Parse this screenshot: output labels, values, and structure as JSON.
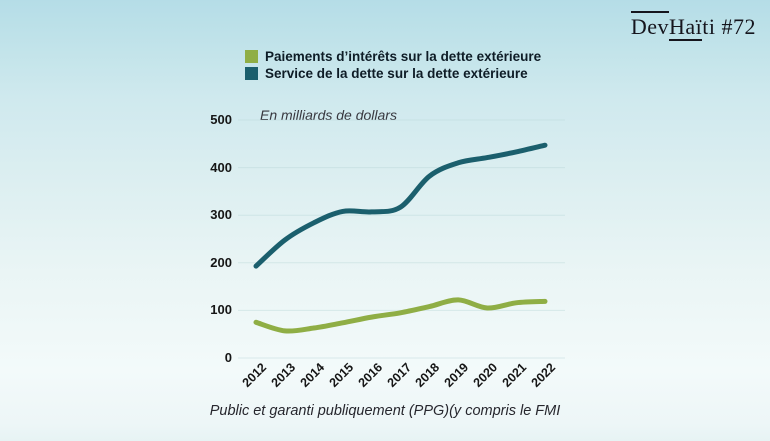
{
  "logo": {
    "part_overlined": "Dev",
    "part_underlined": "Haï",
    "part_rest": "ti",
    "issue": " #72"
  },
  "chart_data": {
    "type": "line",
    "subtitle": "En milliards de dollars",
    "caption": "Public et garanti publiquement (PPG)(y compris le FMI",
    "x": [
      2012,
      2013,
      2014,
      2015,
      2016,
      2017,
      2018,
      2019,
      2020,
      2021,
      2022
    ],
    "series": [
      {
        "name": "Paiements d’intérêts sur la dette extérieure",
        "color": "#8fae45",
        "values": [
          75,
          57,
          63,
          74,
          86,
          95,
          108,
          122,
          105,
          116,
          119
        ]
      },
      {
        "name": "Service de la dette sur la dette extérieure",
        "color": "#1b5f6d",
        "values": [
          193,
          248,
          284,
          308,
          307,
          317,
          382,
          410,
          421,
          433,
          447
        ]
      }
    ],
    "ylim": [
      0,
      500
    ],
    "yticks": [
      0,
      100,
      200,
      300,
      400,
      500
    ],
    "grid": true,
    "grid_color": "#b9d4d8",
    "legend_position": "top",
    "units": "milliards de dollars"
  }
}
